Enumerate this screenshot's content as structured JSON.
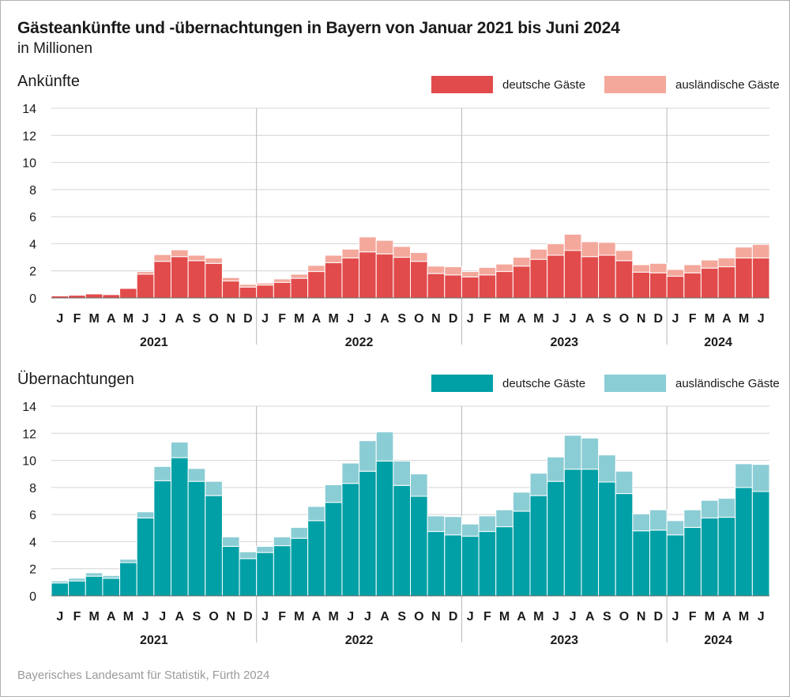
{
  "title": "Gästeankünfte und -übernachtungen in Bayern von Januar 2021 bis Juni 2024",
  "subtitle": "in Millionen",
  "source": "Bayerisches Landesamt für Statistik, Fürth 2024",
  "chart_data": [
    {
      "type": "bar",
      "stacked": true,
      "title": "Ankünfte",
      "ylim": [
        0,
        14
      ],
      "yticks": [
        0,
        2,
        4,
        6,
        8,
        10,
        12,
        14
      ],
      "grid": true,
      "legend_position": "top-right",
      "colors": {
        "deutsche": "#e24b4b",
        "auslaendische": "#f4a89c"
      },
      "month_labels": [
        "J",
        "F",
        "M",
        "A",
        "M",
        "J",
        "J",
        "A",
        "S",
        "O",
        "N",
        "D",
        "J",
        "F",
        "M",
        "A",
        "M",
        "J",
        "J",
        "A",
        "S",
        "O",
        "N",
        "D",
        "J",
        "F",
        "M",
        "A",
        "M",
        "J",
        "J",
        "A",
        "S",
        "O",
        "N",
        "D",
        "J",
        "F",
        "M",
        "A",
        "M",
        "J"
      ],
      "years": [
        {
          "label": "2021",
          "months": 12
        },
        {
          "label": "2022",
          "months": 12
        },
        {
          "label": "2023",
          "months": 12
        },
        {
          "label": "2024",
          "months": 6
        }
      ],
      "series": [
        {
          "name": "deutsche Gäste",
          "values": [
            0.15,
            0.2,
            0.3,
            0.25,
            0.7,
            1.75,
            2.7,
            3.05,
            2.75,
            2.55,
            1.25,
            0.8,
            0.95,
            1.15,
            1.45,
            1.95,
            2.6,
            2.95,
            3.4,
            3.25,
            3.0,
            2.7,
            1.8,
            1.7,
            1.55,
            1.7,
            1.95,
            2.35,
            2.85,
            3.15,
            3.5,
            3.05,
            3.15,
            2.75,
            1.9,
            1.85,
            1.6,
            1.85,
            2.2,
            2.3,
            2.95,
            2.95
          ]
        },
        {
          "name": "ausländische Gäste",
          "values": [
            0.05,
            0.05,
            0.05,
            0.05,
            0.05,
            0.2,
            0.5,
            0.5,
            0.4,
            0.4,
            0.25,
            0.2,
            0.15,
            0.25,
            0.3,
            0.45,
            0.55,
            0.65,
            1.1,
            1.0,
            0.8,
            0.65,
            0.55,
            0.6,
            0.4,
            0.55,
            0.55,
            0.65,
            0.75,
            0.85,
            1.2,
            1.1,
            0.95,
            0.75,
            0.55,
            0.7,
            0.5,
            0.6,
            0.6,
            0.65,
            0.8,
            1.0
          ]
        }
      ]
    },
    {
      "type": "bar",
      "stacked": true,
      "title": "Übernachtungen",
      "ylim": [
        0,
        14
      ],
      "yticks": [
        0,
        2,
        4,
        6,
        8,
        10,
        12,
        14
      ],
      "grid": true,
      "legend_position": "top-right",
      "colors": {
        "deutsche": "#00a0a6",
        "auslaendische": "#8bcdd5"
      },
      "month_labels": [
        "J",
        "F",
        "M",
        "A",
        "M",
        "J",
        "J",
        "A",
        "S",
        "O",
        "N",
        "D",
        "J",
        "F",
        "M",
        "A",
        "M",
        "J",
        "J",
        "A",
        "S",
        "O",
        "N",
        "D",
        "J",
        "F",
        "M",
        "A",
        "M",
        "J",
        "J",
        "A",
        "S",
        "O",
        "N",
        "D",
        "J",
        "F",
        "M",
        "A",
        "M",
        "J"
      ],
      "years": [
        {
          "label": "2021",
          "months": 12
        },
        {
          "label": "2022",
          "months": 12
        },
        {
          "label": "2023",
          "months": 12
        },
        {
          "label": "2024",
          "months": 6
        }
      ],
      "series": [
        {
          "name": "deutsche Gäste",
          "values": [
            0.95,
            1.1,
            1.45,
            1.3,
            2.45,
            5.75,
            8.5,
            10.2,
            8.45,
            7.4,
            3.65,
            2.75,
            3.2,
            3.7,
            4.25,
            5.55,
            6.9,
            8.3,
            9.2,
            9.95,
            8.15,
            7.35,
            4.75,
            4.5,
            4.4,
            4.75,
            5.1,
            6.25,
            7.4,
            8.45,
            9.35,
            9.35,
            8.4,
            7.55,
            4.8,
            4.85,
            4.5,
            5.05,
            5.75,
            5.8,
            8.0,
            7.7
          ]
        },
        {
          "name": "ausländische Gäste",
          "values": [
            0.15,
            0.2,
            0.25,
            0.2,
            0.25,
            0.45,
            1.05,
            1.15,
            0.95,
            1.05,
            0.7,
            0.5,
            0.45,
            0.65,
            0.8,
            1.05,
            1.3,
            1.5,
            2.25,
            2.15,
            1.8,
            1.65,
            1.15,
            1.35,
            0.9,
            1.15,
            1.25,
            1.4,
            1.65,
            1.8,
            2.5,
            2.3,
            2.0,
            1.65,
            1.25,
            1.5,
            1.05,
            1.3,
            1.3,
            1.4,
            1.75,
            2.0
          ]
        }
      ]
    }
  ]
}
